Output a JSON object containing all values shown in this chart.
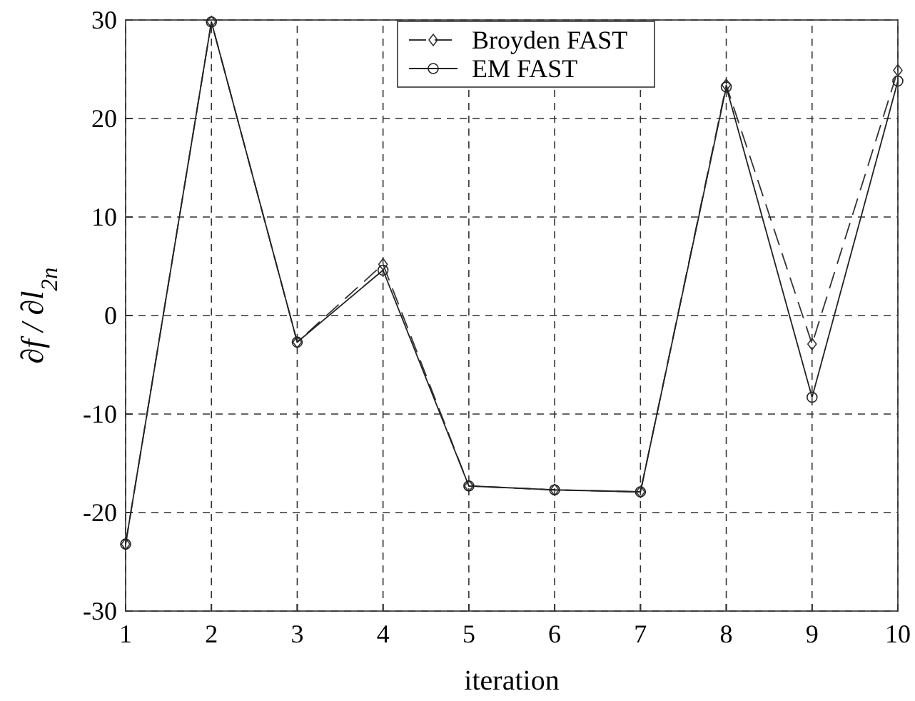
{
  "chart_data": {
    "type": "line",
    "xlabel": "iteration",
    "ylabel": "∂f / ∂l$_{2n}$",
    "x": [
      1,
      2,
      3,
      4,
      5,
      6,
      7,
      8,
      9,
      10
    ],
    "series": [
      {
        "name": "Broyden FAST",
        "color": "#333333",
        "marker": "diamond",
        "line_style": "dashed",
        "values": [
          -23.2,
          29.8,
          -2.7,
          5.2,
          -17.3,
          -17.7,
          -17.9,
          23.4,
          -2.9,
          24.9
        ]
      },
      {
        "name": "EM FAST",
        "color": "#222222",
        "marker": "circle",
        "line_style": "solid",
        "values": [
          -23.2,
          29.8,
          -2.7,
          4.6,
          -17.3,
          -17.7,
          -17.9,
          23.2,
          -8.3,
          23.8
        ]
      }
    ],
    "xlim": [
      1,
      10
    ],
    "xticks": [
      1,
      2,
      3,
      4,
      5,
      6,
      7,
      8,
      9,
      10
    ],
    "ylim": [
      -30,
      30
    ],
    "yticks": [
      -30,
      -20,
      -10,
      0,
      10,
      20,
      30
    ],
    "grid": true,
    "legend": "top"
  }
}
